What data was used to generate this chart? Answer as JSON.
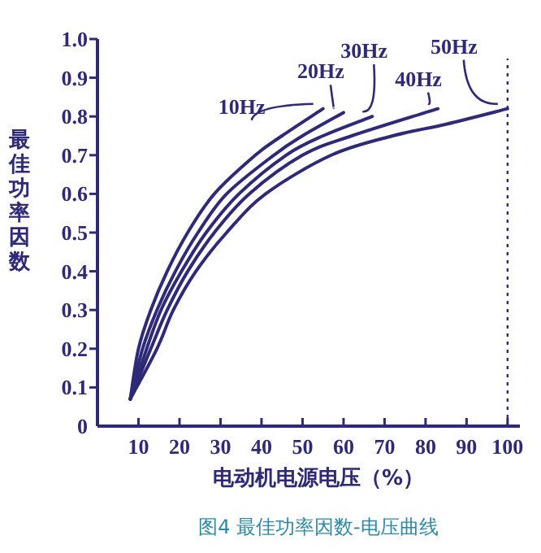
{
  "chart_data": {
    "type": "line",
    "xlabel": "电动机电源电压（%）",
    "ylabel": "最佳功率因数",
    "annotations": [
      "图4  最佳功率因数-电压曲线"
    ],
    "xlim": [
      0,
      103
    ],
    "ylim": [
      0,
      1.0
    ],
    "xticks": [
      10,
      20,
      30,
      40,
      50,
      60,
      70,
      80,
      90,
      100
    ],
    "yticks": [
      {
        "value": 0,
        "label": "0"
      },
      0.1,
      0.2,
      0.3,
      0.4,
      0.5,
      0.6,
      0.7,
      0.8,
      0.9,
      {
        "value": 1.0,
        "label": "1.0"
      }
    ],
    "grid": false,
    "legend": false,
    "marker": "none",
    "line_style": "solid",
    "ref_lines": [
      {
        "axis": "x",
        "value": 100,
        "label": null,
        "color": "#2e2a78",
        "line_style": "dotted"
      }
    ],
    "series": [
      {
        "name": "10Hz",
        "color": "#2e2a78",
        "x": [
          8,
          10,
          13,
          17,
          22,
          28.5,
          38.5,
          45,
          55
        ],
        "values": [
          0.07,
          0.2,
          0.3,
          0.4,
          0.5,
          0.6,
          0.7,
          0.75,
          0.82
        ]
      },
      {
        "name": "20Hz",
        "color": "#2e2a78",
        "x": [
          8,
          11,
          14.5,
          19,
          24.5,
          31.5,
          43,
          50,
          60
        ],
        "values": [
          0.07,
          0.2,
          0.3,
          0.4,
          0.5,
          0.6,
          0.7,
          0.75,
          0.81
        ]
      },
      {
        "name": "30Hz",
        "color": "#2e2a78",
        "x": [
          8,
          12,
          15.5,
          20.5,
          26.5,
          34.5,
          46,
          55,
          67
        ],
        "values": [
          0.07,
          0.2,
          0.3,
          0.4,
          0.5,
          0.6,
          0.7,
          0.75,
          0.8
        ]
      },
      {
        "name": "40Hz",
        "color": "#2e2a78",
        "x": [
          8,
          13,
          17,
          22,
          28.5,
          37,
          50,
          62,
          83
        ],
        "values": [
          0.07,
          0.2,
          0.3,
          0.4,
          0.5,
          0.6,
          0.7,
          0.75,
          0.82
        ]
      },
      {
        "name": "50Hz",
        "color": "#2e2a78",
        "x": [
          8,
          14.5,
          18.5,
          24,
          31.5,
          41,
          57,
          72,
          85,
          100
        ],
        "values": [
          0.07,
          0.2,
          0.3,
          0.4,
          0.5,
          0.6,
          0.7,
          0.75,
          0.78,
          0.82
        ]
      }
    ]
  }
}
